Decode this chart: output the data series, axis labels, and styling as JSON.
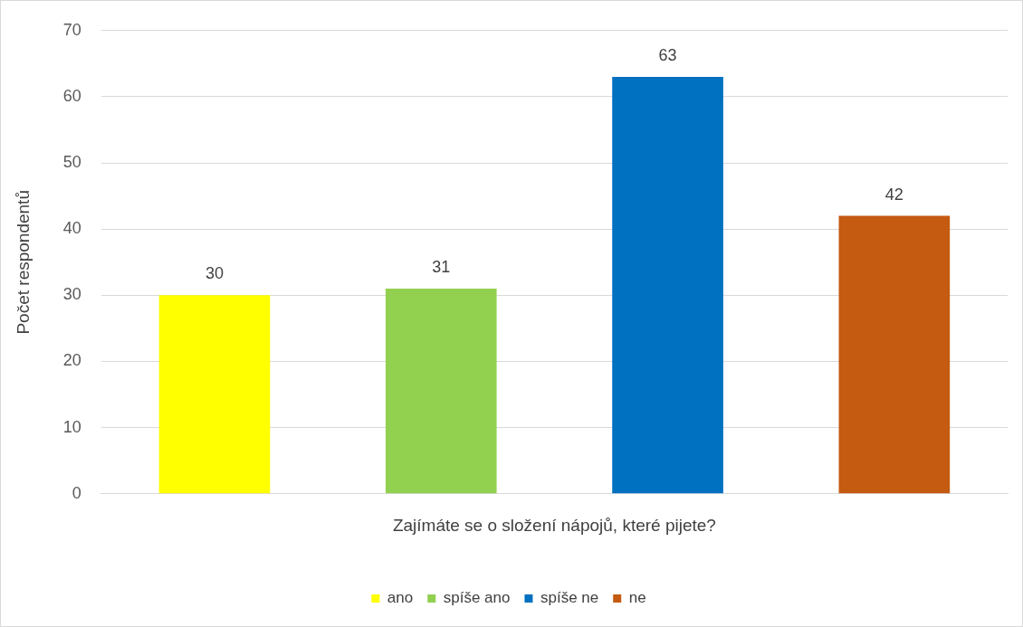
{
  "chart_data": {
    "type": "bar",
    "xlabel": "Zajímáte se o složení nápojů, které pijete?",
    "ylabel": "Počet respondentů",
    "categories": [
      null
    ],
    "series": [
      {
        "name": "ano",
        "color": "#ffff00",
        "values": [
          30
        ]
      },
      {
        "name": "spíše ano",
        "color": "#92d050",
        "values": [
          31
        ]
      },
      {
        "name": "spíše ne",
        "color": "#0070c0",
        "values": [
          63
        ]
      },
      {
        "name": "ne",
        "color": "#c55a11",
        "values": [
          42
        ]
      }
    ],
    "ylim": [
      0,
      70
    ],
    "yticks": [
      0,
      10,
      20,
      30,
      40,
      50,
      60,
      70
    ],
    "grid": "y",
    "legend": "bottom",
    "data_labels": true
  }
}
